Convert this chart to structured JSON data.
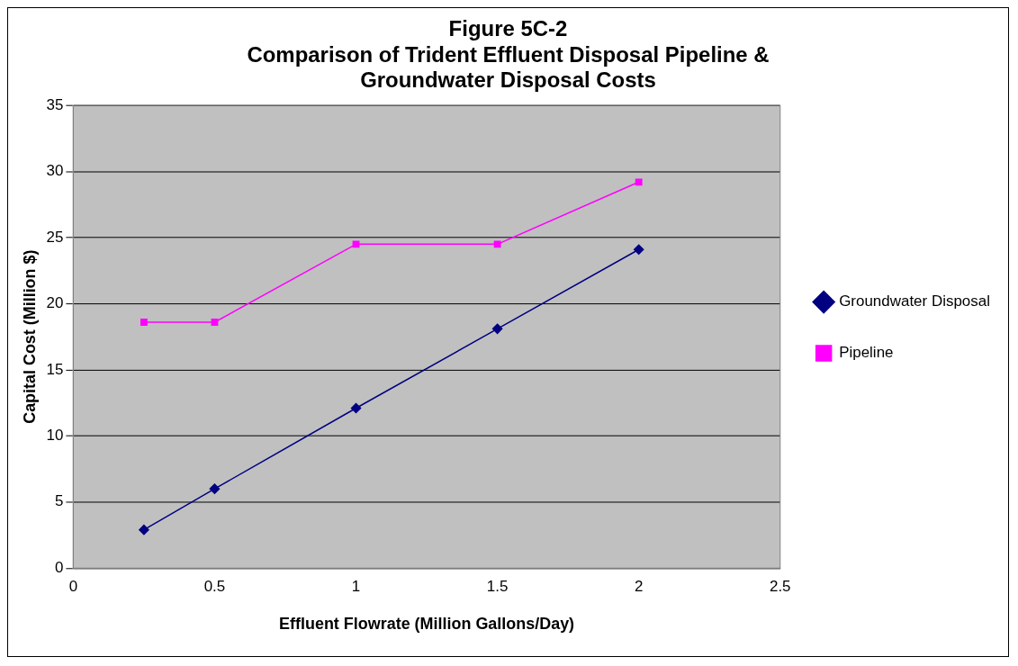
{
  "chart_data": {
    "type": "line",
    "title": "Figure 5C-2\nComparison of Trident Effluent Disposal Pipeline &\nGroundwater Disposal Costs",
    "xlabel": "Effluent Flowrate (Million Gallons/Day)",
    "ylabel": "Capital Cost (Million $)",
    "x": [
      0.25,
      0.5,
      1,
      1.5,
      2
    ],
    "series": [
      {
        "name": "Groundwater Disposal",
        "color": "#000080",
        "marker": "diamond",
        "values": [
          2.9,
          6,
          12.1,
          18.1,
          24.1
        ]
      },
      {
        "name": "Pipeline",
        "color": "#ff00ff",
        "marker": "square",
        "values": [
          18.6,
          18.6,
          24.5,
          24.5,
          29.2
        ]
      }
    ],
    "xlim": [
      0,
      2.5
    ],
    "xticks": [
      0,
      0.5,
      1,
      1.5,
      2,
      2.5
    ],
    "ylim": [
      0,
      35
    ],
    "yticks": [
      0,
      5,
      10,
      15,
      20,
      25,
      30,
      35
    ],
    "grid": "y",
    "legend": "right"
  }
}
